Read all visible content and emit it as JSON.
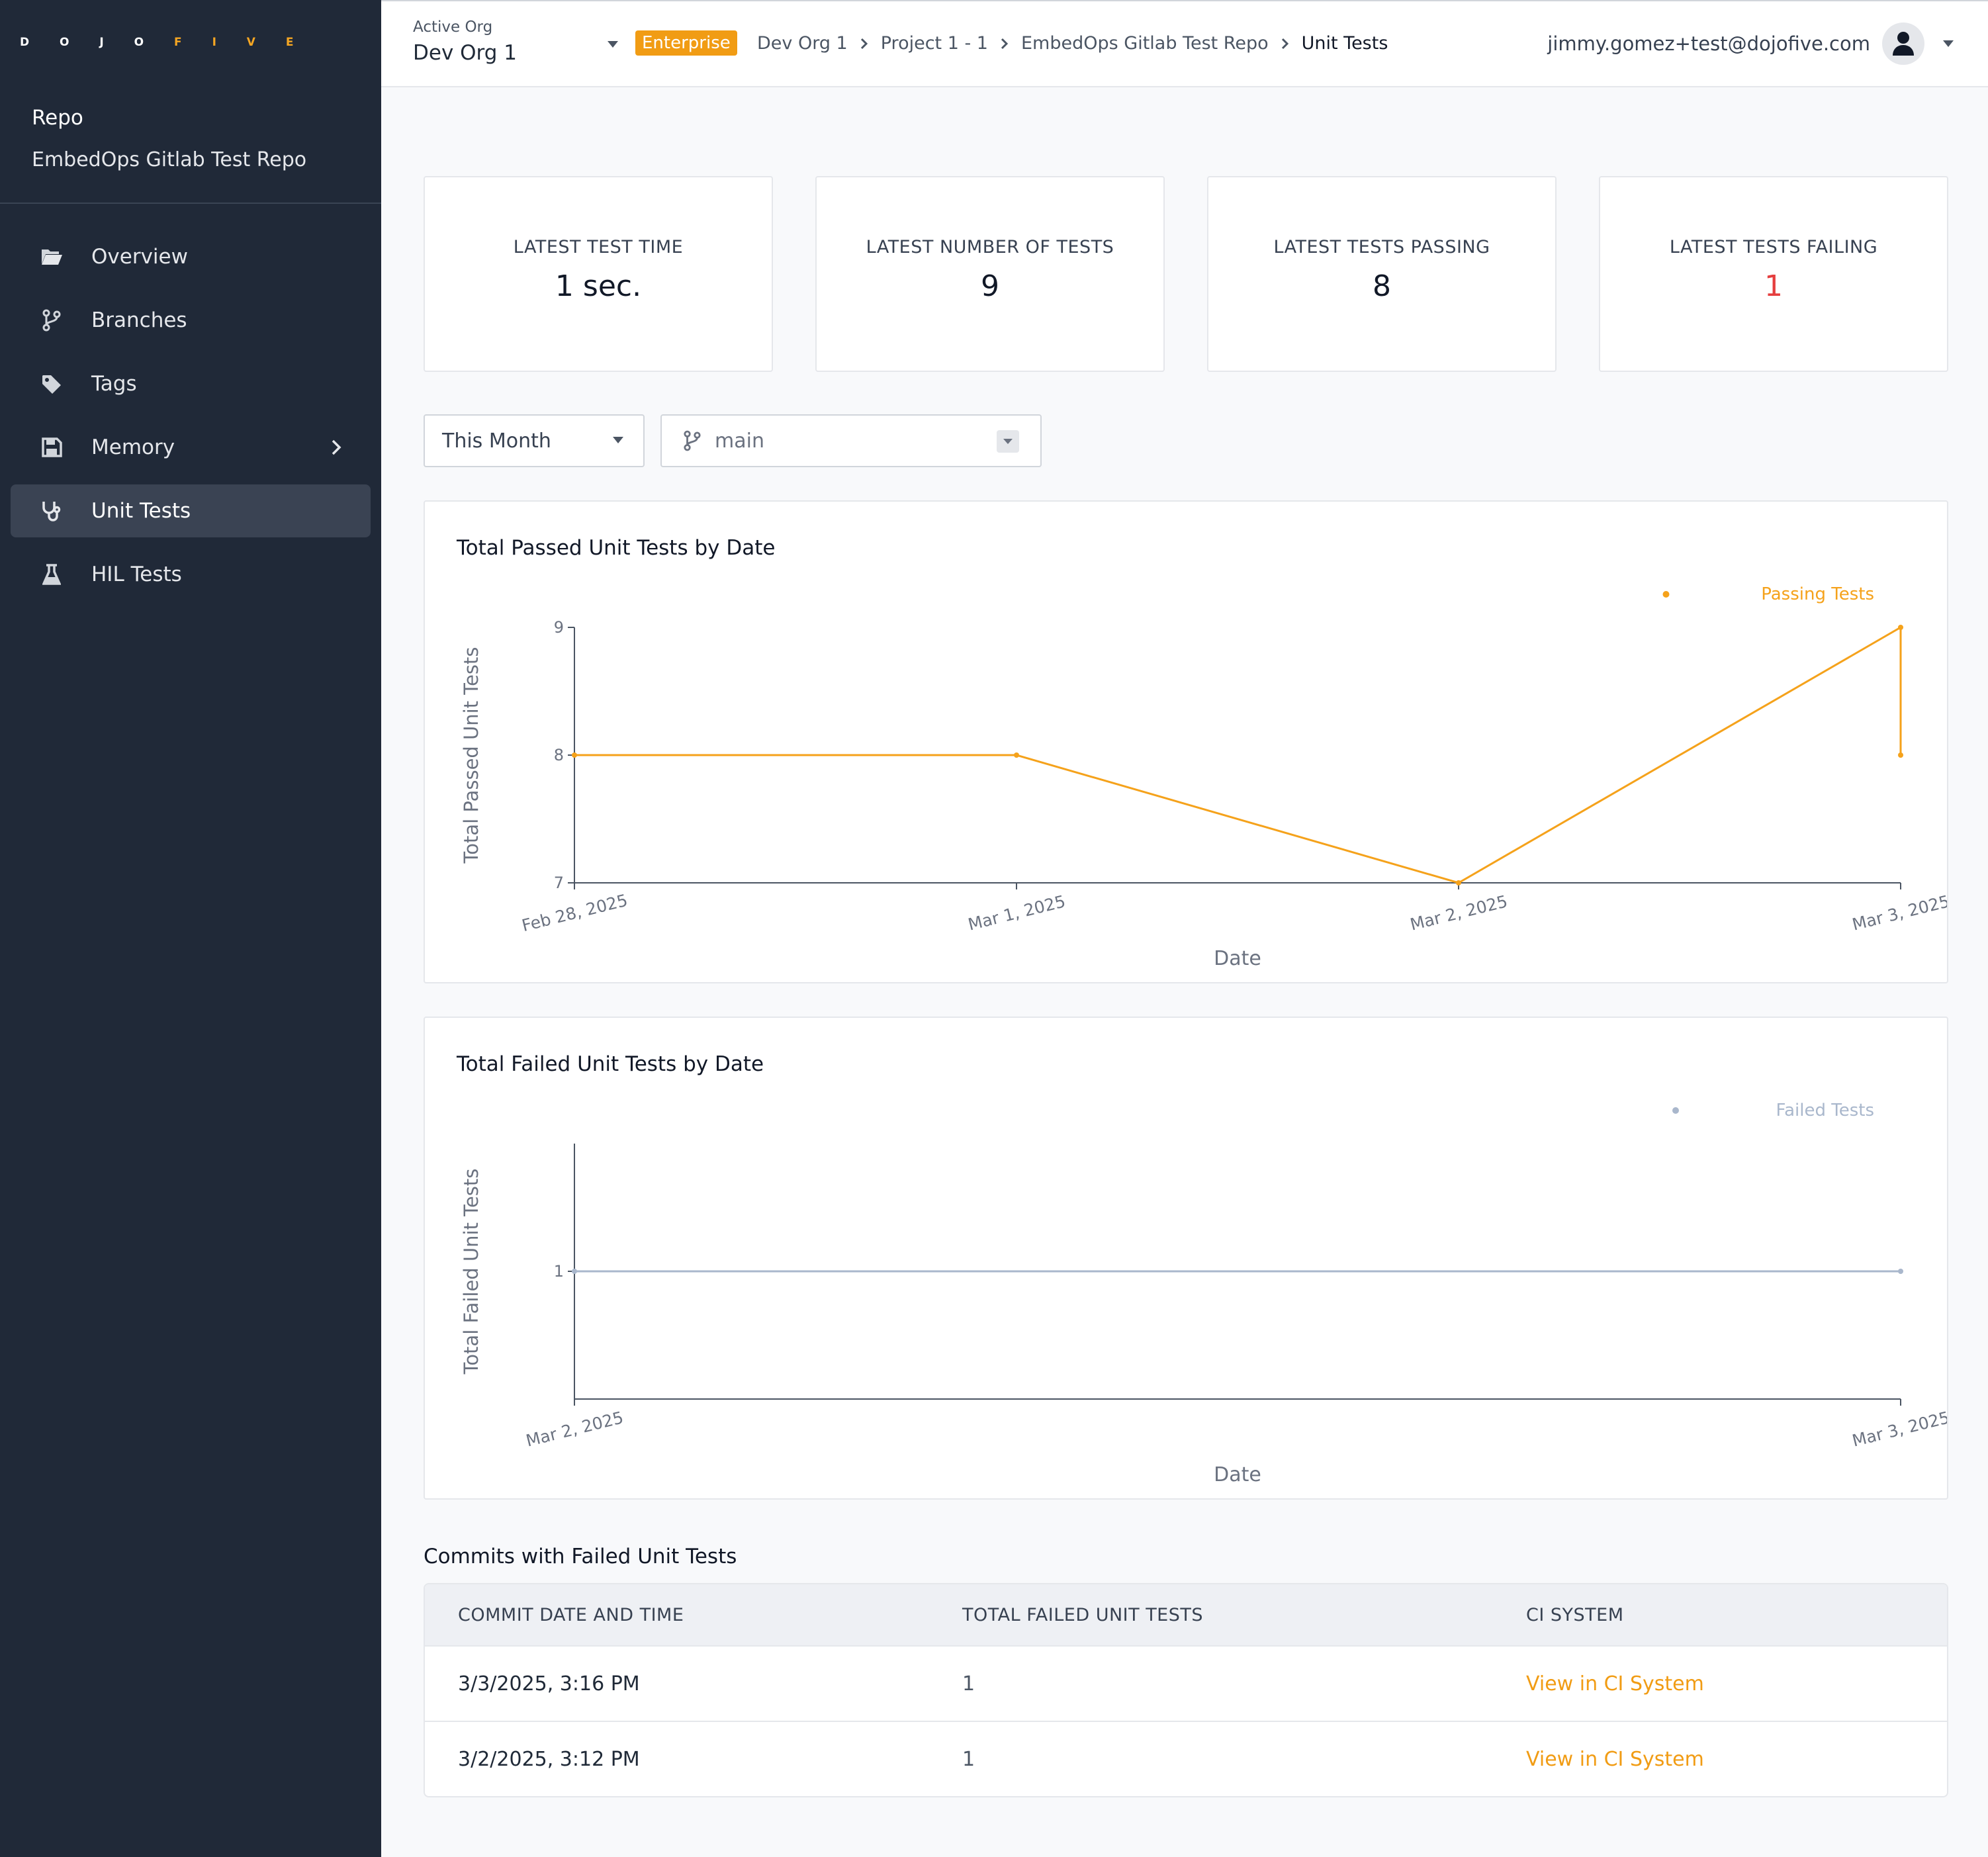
{
  "logo": {
    "text_main": "D O J O",
    "text_accent": "F I V E"
  },
  "sidebar": {
    "repo_label": "Repo",
    "repo_name": "EmbedOps Gitlab Test Repo",
    "items": [
      {
        "label": "Overview",
        "icon": "folder-open-icon"
      },
      {
        "label": "Branches",
        "icon": "git-branch-icon"
      },
      {
        "label": "Tags",
        "icon": "tag-icon"
      },
      {
        "label": "Memory",
        "icon": "save-disk-icon"
      },
      {
        "label": "Unit Tests",
        "icon": "stethoscope-icon"
      },
      {
        "label": "HIL Tests",
        "icon": "flask-icon"
      }
    ],
    "active_item": "Unit Tests"
  },
  "header": {
    "org_label": "Active Org",
    "org_name": "Dev Org 1",
    "badge": "Enterprise",
    "breadcrumbs": [
      "Dev Org 1",
      "Project 1 - 1",
      "EmbedOps Gitlab Test Repo",
      "Unit Tests"
    ],
    "user_email": "jimmy.gomez+test@dojofive.com"
  },
  "stats": [
    {
      "label": "LATEST TEST TIME",
      "value": "1 sec."
    },
    {
      "label": "LATEST NUMBER OF TESTS",
      "value": "9"
    },
    {
      "label": "LATEST TESTS PASSING",
      "value": "8"
    },
    {
      "label": "LATEST TESTS FAILING",
      "value": "1"
    }
  ],
  "filters": {
    "period": "This Month",
    "branch": "main"
  },
  "colors": {
    "accent": "#f19c14",
    "sidebar_bg": "#202938",
    "passing_line": "#f5a21b",
    "failed_line": "#a9b7cc",
    "fail_value": "#e53e3e"
  },
  "chart_data": [
    {
      "type": "line",
      "title": "Total Passed Unit Tests by Date",
      "xlabel": "Date",
      "ylabel": "Total Passed Unit Tests",
      "legend_position": "top-right",
      "x_ticks": [
        "Feb 28, 2025",
        "Mar 1, 2025",
        "Mar 2, 2025",
        "Mar 3, 2025"
      ],
      "ylim": [
        7,
        9
      ],
      "y_ticks": [
        "7",
        "8",
        "9"
      ],
      "series": [
        {
          "name": "Passing Tests",
          "points": [
            {
              "x": "Feb 28, 2025",
              "y": 8
            },
            {
              "x": "Mar 1, 2025",
              "y": 8
            },
            {
              "x": "Mar 2, 2025",
              "y": 7
            },
            {
              "x": "Mar 3, 2025",
              "y": 9
            },
            {
              "x": "Mar 3, 2025",
              "y": 8
            }
          ]
        }
      ]
    },
    {
      "type": "line",
      "title": "Total Failed Unit Tests by Date",
      "xlabel": "Date",
      "ylabel": "Total Failed Unit Tests",
      "legend_position": "top-right",
      "x_ticks": [
        "Mar 2, 2025",
        "Mar 3, 2025"
      ],
      "ylim": [
        0,
        2
      ],
      "y_ticks": [
        "1"
      ],
      "series": [
        {
          "name": "Failed Tests",
          "points": [
            {
              "x": "Mar 2, 2025",
              "y": 1
            },
            {
              "x": "Mar 3, 2025",
              "y": 1
            }
          ]
        }
      ]
    }
  ],
  "failed_commits": {
    "title": "Commits with Failed Unit Tests",
    "columns": [
      "COMMIT DATE AND TIME",
      "TOTAL FAILED UNIT TESTS",
      "CI SYSTEM"
    ],
    "rows": [
      {
        "date": "3/3/2025, 3:16 PM",
        "failed": "1",
        "ci": "View in CI System"
      },
      {
        "date": "3/2/2025, 3:12 PM",
        "failed": "1",
        "ci": "View in CI System"
      }
    ]
  }
}
